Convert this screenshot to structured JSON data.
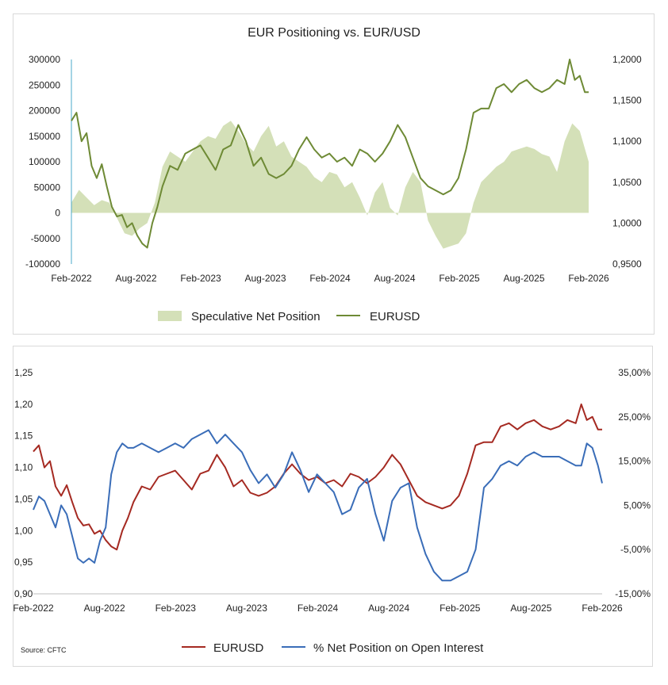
{
  "colors": {
    "net_fill": "#d4e0b8",
    "eurusd_top": "#6e8a35",
    "eurusd_bottom": "#a52a22",
    "pct_line": "#3a6db8",
    "axis_line": "#4aa8c8"
  },
  "source": "Source: CFTC",
  "chart_data": [
    {
      "type": "area",
      "title": "EUR Positioning vs. EUR/USD",
      "x_tick_labels": [
        "Feb-2022",
        "Aug-2022",
        "Feb-2023",
        "Aug-2023",
        "Feb-2024",
        "Aug-2024",
        "Feb-2025",
        "Aug-2025",
        "Feb-2026"
      ],
      "y_left_tick_labels": [
        "300000",
        "250000",
        "200000",
        "150000",
        "100000",
        "50000",
        "0",
        "-50000",
        "-100000"
      ],
      "y_right_tick_labels": [
        "1,2000",
        "1,1500",
        "1,1000",
        "1,0500",
        "1,0000",
        "0,9500"
      ],
      "y_left_range": [
        -100000,
        300000
      ],
      "y_right_range": [
        0.95,
        1.2
      ],
      "x_range": [
        2022.08,
        2026.17
      ],
      "legend": [
        "Speculative Net Position",
        "EURUSD"
      ],
      "legend_position": "bottom",
      "grid": false,
      "series": [
        {
          "name": "Speculative Net Position",
          "axis": "left",
          "style": "area",
          "x": [
            2022.08,
            2022.14,
            2022.2,
            2022.26,
            2022.32,
            2022.38,
            2022.44,
            2022.5,
            2022.56,
            2022.62,
            2022.68,
            2022.74,
            2022.8,
            2022.86,
            2022.92,
            2022.98,
            2023.04,
            2023.1,
            2023.16,
            2023.22,
            2023.28,
            2023.34,
            2023.4,
            2023.46,
            2023.52,
            2023.58,
            2023.64,
            2023.7,
            2023.76,
            2023.82,
            2023.88,
            2023.94,
            2024.0,
            2024.06,
            2024.12,
            2024.18,
            2024.24,
            2024.3,
            2024.36,
            2024.42,
            2024.48,
            2024.54,
            2024.6,
            2024.66,
            2024.72,
            2024.78,
            2024.84,
            2024.9,
            2024.96,
            2025.02,
            2025.08,
            2025.14,
            2025.2,
            2025.26,
            2025.32,
            2025.38,
            2025.44,
            2025.5,
            2025.56,
            2025.62,
            2025.68,
            2025.74,
            2025.8,
            2025.86,
            2025.92,
            2025.98,
            2026.04,
            2026.1,
            2026.17
          ],
          "values": [
            20000,
            45000,
            30000,
            15000,
            25000,
            20000,
            -10000,
            -40000,
            -45000,
            -30000,
            -20000,
            20000,
            90000,
            120000,
            110000,
            100000,
            120000,
            140000,
            150000,
            145000,
            170000,
            180000,
            160000,
            135000,
            120000,
            150000,
            170000,
            130000,
            140000,
            110000,
            100000,
            90000,
            70000,
            60000,
            80000,
            75000,
            50000,
            60000,
            30000,
            -5000,
            40000,
            60000,
            10000,
            -5000,
            50000,
            80000,
            60000,
            -15000,
            -45000,
            -70000,
            -65000,
            -60000,
            -40000,
            20000,
            60000,
            75000,
            90000,
            100000,
            120000,
            125000,
            130000,
            125000,
            115000,
            110000,
            80000,
            140000,
            175000,
            160000,
            100000
          ]
        },
        {
          "name": "EURUSD",
          "axis": "right",
          "style": "line",
          "x": [
            2022.08,
            2022.12,
            2022.16,
            2022.2,
            2022.24,
            2022.28,
            2022.32,
            2022.36,
            2022.4,
            2022.44,
            2022.48,
            2022.52,
            2022.56,
            2022.6,
            2022.64,
            2022.68,
            2022.72,
            2022.76,
            2022.8,
            2022.86,
            2022.92,
            2022.98,
            2023.04,
            2023.1,
            2023.16,
            2023.22,
            2023.28,
            2023.34,
            2023.4,
            2023.46,
            2023.52,
            2023.58,
            2023.64,
            2023.7,
            2023.76,
            2023.82,
            2023.88,
            2023.94,
            2024.0,
            2024.06,
            2024.12,
            2024.18,
            2024.24,
            2024.3,
            2024.36,
            2024.42,
            2024.48,
            2024.54,
            2024.6,
            2024.66,
            2024.72,
            2024.78,
            2024.84,
            2024.9,
            2024.96,
            2025.02,
            2025.08,
            2025.14,
            2025.2,
            2025.26,
            2025.32,
            2025.38,
            2025.44,
            2025.5,
            2025.56,
            2025.62,
            2025.68,
            2025.74,
            2025.8,
            2025.86,
            2025.92,
            2025.98,
            2026.02,
            2026.06,
            2026.1,
            2026.14,
            2026.17
          ],
          "values": [
            1.125,
            1.135,
            1.1,
            1.11,
            1.07,
            1.055,
            1.072,
            1.045,
            1.02,
            1.008,
            1.01,
            0.995,
            1.0,
            0.985,
            0.975,
            0.97,
            1.0,
            1.02,
            1.045,
            1.07,
            1.065,
            1.085,
            1.09,
            1.095,
            1.08,
            1.065,
            1.09,
            1.095,
            1.12,
            1.1,
            1.07,
            1.08,
            1.06,
            1.055,
            1.06,
            1.07,
            1.09,
            1.105,
            1.09,
            1.08,
            1.085,
            1.075,
            1.08,
            1.07,
            1.09,
            1.085,
            1.075,
            1.085,
            1.1,
            1.12,
            1.105,
            1.08,
            1.055,
            1.045,
            1.04,
            1.035,
            1.04,
            1.055,
            1.09,
            1.135,
            1.14,
            1.14,
            1.165,
            1.17,
            1.16,
            1.17,
            1.175,
            1.165,
            1.16,
            1.165,
            1.175,
            1.17,
            1.2,
            1.175,
            1.18,
            1.16,
            1.16
          ]
        }
      ]
    },
    {
      "type": "line",
      "title": "",
      "x_tick_labels": [
        "Feb-2022",
        "Aug-2022",
        "Feb-2023",
        "Aug-2023",
        "Feb-2024",
        "Aug-2024",
        "Feb-2025",
        "Aug-2025",
        "Feb-2026"
      ],
      "y_left_tick_labels": [
        "1,25",
        "1,20",
        "1,15",
        "1,10",
        "1,05",
        "1,00",
        "0,95",
        "0,90"
      ],
      "y_right_tick_labels": [
        "35,00%",
        "25,00%",
        "15,00%",
        "5,00%",
        "-5,00%",
        "-15,00%"
      ],
      "y_left_range": [
        0.9,
        1.25
      ],
      "y_right_range": [
        -15,
        35
      ],
      "x_range": [
        2022.08,
        2026.17
      ],
      "legend": [
        "EURUSD",
        "% Net Position on Open Interest"
      ],
      "legend_position": "bottom",
      "grid": false,
      "series": [
        {
          "name": "EURUSD",
          "axis": "left",
          "x": [
            2022.08,
            2022.12,
            2022.16,
            2022.2,
            2022.24,
            2022.28,
            2022.32,
            2022.36,
            2022.4,
            2022.44,
            2022.48,
            2022.52,
            2022.56,
            2022.6,
            2022.64,
            2022.68,
            2022.72,
            2022.76,
            2022.8,
            2022.86,
            2022.92,
            2022.98,
            2023.04,
            2023.1,
            2023.16,
            2023.22,
            2023.28,
            2023.34,
            2023.4,
            2023.46,
            2023.52,
            2023.58,
            2023.64,
            2023.7,
            2023.76,
            2023.82,
            2023.88,
            2023.94,
            2024.0,
            2024.06,
            2024.12,
            2024.18,
            2024.24,
            2024.3,
            2024.36,
            2024.42,
            2024.48,
            2024.54,
            2024.6,
            2024.66,
            2024.72,
            2024.78,
            2024.84,
            2024.9,
            2024.96,
            2025.02,
            2025.08,
            2025.14,
            2025.2,
            2025.26,
            2025.32,
            2025.38,
            2025.44,
            2025.5,
            2025.56,
            2025.62,
            2025.68,
            2025.74,
            2025.8,
            2025.86,
            2025.92,
            2025.98,
            2026.02,
            2026.06,
            2026.1,
            2026.14,
            2026.17
          ],
          "values": [
            1.125,
            1.135,
            1.1,
            1.11,
            1.07,
            1.055,
            1.072,
            1.045,
            1.02,
            1.008,
            1.01,
            0.995,
            1.0,
            0.985,
            0.975,
            0.97,
            1.0,
            1.02,
            1.045,
            1.07,
            1.065,
            1.085,
            1.09,
            1.095,
            1.08,
            1.065,
            1.09,
            1.095,
            1.12,
            1.1,
            1.07,
            1.08,
            1.06,
            1.055,
            1.06,
            1.07,
            1.09,
            1.105,
            1.09,
            1.08,
            1.085,
            1.075,
            1.08,
            1.07,
            1.09,
            1.085,
            1.075,
            1.085,
            1.1,
            1.12,
            1.105,
            1.08,
            1.055,
            1.045,
            1.04,
            1.035,
            1.04,
            1.055,
            1.09,
            1.135,
            1.14,
            1.14,
            1.165,
            1.17,
            1.16,
            1.17,
            1.175,
            1.165,
            1.16,
            1.165,
            1.175,
            1.17,
            1.2,
            1.175,
            1.18,
            1.16,
            1.16
          ]
        },
        {
          "name": "% Net Position on Open Interest",
          "axis": "right",
          "x": [
            2022.08,
            2022.12,
            2022.16,
            2022.2,
            2022.24,
            2022.28,
            2022.32,
            2022.36,
            2022.4,
            2022.44,
            2022.48,
            2022.52,
            2022.56,
            2022.6,
            2022.64,
            2022.68,
            2022.72,
            2022.76,
            2022.8,
            2022.86,
            2022.92,
            2022.98,
            2023.04,
            2023.1,
            2023.16,
            2023.22,
            2023.28,
            2023.34,
            2023.4,
            2023.46,
            2023.52,
            2023.58,
            2023.64,
            2023.7,
            2023.76,
            2023.82,
            2023.88,
            2023.94,
            2024.0,
            2024.06,
            2024.12,
            2024.18,
            2024.24,
            2024.3,
            2024.36,
            2024.42,
            2024.48,
            2024.54,
            2024.6,
            2024.66,
            2024.72,
            2024.78,
            2024.84,
            2024.9,
            2024.96,
            2025.02,
            2025.08,
            2025.14,
            2025.2,
            2025.26,
            2025.32,
            2025.38,
            2025.44,
            2025.5,
            2025.56,
            2025.62,
            2025.68,
            2025.74,
            2025.8,
            2025.86,
            2025.92,
            2025.98,
            2026.02,
            2026.06,
            2026.1,
            2026.14,
            2026.17
          ],
          "values": [
            4,
            7,
            6,
            3,
            0,
            5,
            3,
            -2,
            -7,
            -8,
            -7,
            -8,
            -3,
            0,
            12,
            17,
            19,
            18,
            18,
            19,
            18,
            17,
            18,
            19,
            18,
            20,
            21,
            22,
            19,
            21,
            19,
            17,
            13,
            10,
            12,
            9,
            12,
            17,
            13,
            8,
            12,
            10,
            8,
            3,
            4,
            9,
            11,
            3,
            -3,
            6,
            9,
            10,
            0,
            -6,
            -10,
            -12,
            -12,
            -11,
            -10,
            -5,
            9,
            11,
            14,
            15,
            14,
            16,
            17,
            16,
            16,
            16,
            15,
            14,
            14,
            19,
            18,
            14,
            10
          ]
        }
      ]
    }
  ]
}
